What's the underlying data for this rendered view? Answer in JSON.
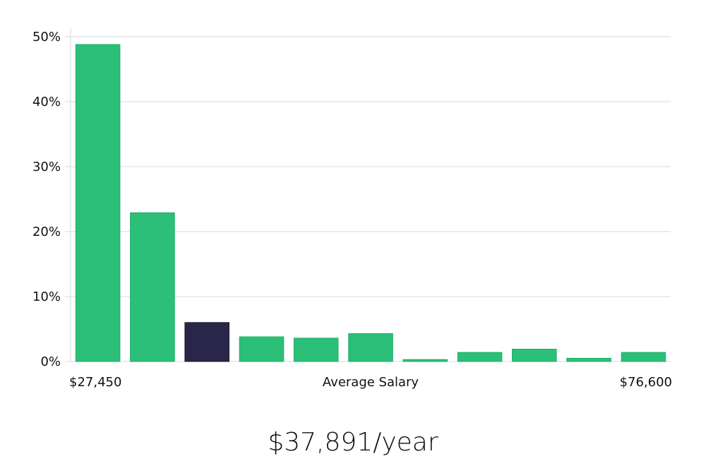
{
  "chart_data": {
    "type": "bar",
    "xlabel": "Average Salary",
    "x_range_labels": [
      "$27,450",
      "$76,600"
    ],
    "ylim": [
      0,
      50
    ],
    "yticks": [
      "0%",
      "10%",
      "20%",
      "30%",
      "40%",
      "50%"
    ],
    "ytick_values": [
      0,
      10,
      20,
      30,
      40,
      50
    ],
    "grid": true,
    "values": [
      48.8,
      22.9,
      6.0,
      3.8,
      3.6,
      4.3,
      0.3,
      1.4,
      1.9,
      0.5,
      1.4
    ],
    "highlight_index": 2,
    "colors": {
      "bar": "#2bbf77",
      "highlight": "#29264a",
      "grid": "#d8d8d8"
    }
  },
  "salary_text": "$37,891/year"
}
